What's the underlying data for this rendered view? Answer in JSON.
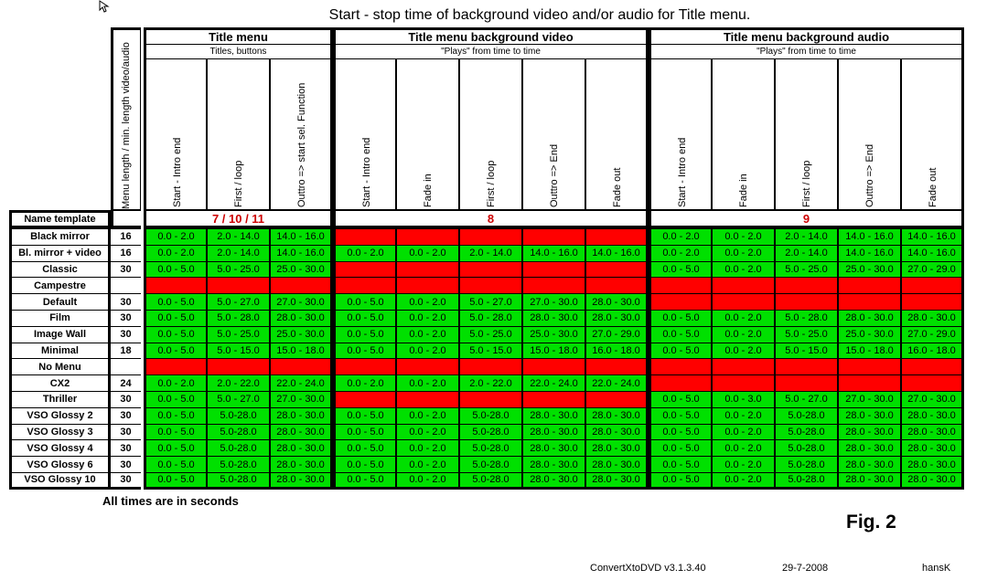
{
  "title": "Start - stop time of background video and/or audio for Title menu.",
  "menu_length_header": "Menu length / min. length video/audio",
  "groups": [
    {
      "title": "Title menu",
      "subtitle": "Titles, buttons",
      "columns": [
        "Start - Intro end",
        "First / loop",
        "Outtro => start sel. Function"
      ],
      "template": "7 / 10 / 11"
    },
    {
      "title": "Title menu background video",
      "subtitle": "\"Plays\" from time to time",
      "columns": [
        "Start - Intro end",
        "Fade in",
        "First / loop",
        "Outtro => End",
        "Fade out"
      ],
      "template": "8"
    },
    {
      "title": "Title menu background audio",
      "subtitle": "\"Plays\" from time to time",
      "columns": [
        "Start - Intro end",
        "Fade in",
        "First / loop",
        "Outtro => End",
        "Fade out"
      ],
      "template": "9"
    }
  ],
  "name_template_label": "Name template",
  "rows": [
    {
      "name": "Black mirror",
      "len": "16",
      "tm": [
        "0.0 - 2.0",
        "2.0 - 14.0",
        "14.0 - 16.0"
      ],
      "video": null,
      "audio": [
        "0.0 - 2.0",
        "0.0 - 2.0",
        "2.0 - 14.0",
        "14.0 - 16.0",
        "14.0 - 16.0"
      ]
    },
    {
      "name": "Bl. mirror + video",
      "len": "16",
      "tm": [
        "0.0 - 2.0",
        "2.0 - 14.0",
        "14.0 - 16.0"
      ],
      "video": [
        "0.0 - 2.0",
        "0.0 - 2.0",
        "2.0 - 14.0",
        "14.0 - 16.0",
        "14.0 - 16.0"
      ],
      "audio": [
        "0.0 - 2.0",
        "0.0 - 2.0",
        "2.0 - 14.0",
        "14.0 - 16.0",
        "14.0 - 16.0"
      ]
    },
    {
      "name": "Classic",
      "len": "30",
      "tm": [
        "0.0 - 5.0",
        "5.0 - 25.0",
        "25.0 - 30.0"
      ],
      "video": null,
      "audio": [
        "0.0 - 5.0",
        "0.0 - 2.0",
        "5.0 - 25.0",
        "25.0 - 30.0",
        "27.0 - 29.0"
      ]
    },
    {
      "name": "Campestre",
      "len": "",
      "tm": null,
      "video": null,
      "audio": null
    },
    {
      "name": "Default",
      "len": "30",
      "tm": [
        "0.0 - 5.0",
        "5.0 - 27.0",
        "27.0 - 30.0"
      ],
      "video": [
        "0.0 - 5.0",
        "0.0 - 2.0",
        "5.0 - 27.0",
        "27.0 - 30.0",
        "28.0 - 30.0"
      ],
      "audio": null
    },
    {
      "name": "Film",
      "len": "30",
      "tm": [
        "0.0 - 5.0",
        "5.0 - 28.0",
        "28.0 - 30.0"
      ],
      "video": [
        "0.0 - 5.0",
        "0.0 - 2.0",
        "5.0 - 28.0",
        "28.0 - 30.0",
        "28.0 - 30.0"
      ],
      "audio": [
        "0.0 - 5.0",
        "0.0 - 2.0",
        "5.0 - 28.0",
        "28.0 - 30.0",
        "28.0 - 30.0"
      ]
    },
    {
      "name": "Image Wall",
      "len": "30",
      "tm": [
        "0.0 - 5.0",
        "5.0 - 25.0",
        "25.0 - 30.0"
      ],
      "video": [
        "0.0 - 5.0",
        "0.0 - 2.0",
        "5.0 - 25.0",
        "25.0 - 30.0",
        "27.0 - 29.0"
      ],
      "audio": [
        "0.0 - 5.0",
        "0.0 - 2.0",
        "5.0 - 25.0",
        "25.0 - 30.0",
        "27.0 - 29.0"
      ]
    },
    {
      "name": "Minimal",
      "len": "18",
      "tm": [
        "0.0 - 5.0",
        "5.0 - 15.0",
        "15.0 - 18.0"
      ],
      "video": [
        "0.0 - 5.0",
        "0.0 - 2.0",
        "5.0 - 15.0",
        "15.0 - 18.0",
        "16.0 - 18.0"
      ],
      "audio": [
        "0.0 - 5.0",
        "0.0 - 2.0",
        "5.0 - 15.0",
        "15.0 - 18.0",
        "16.0 - 18.0"
      ]
    },
    {
      "name": "No Menu",
      "len": "",
      "tm": null,
      "video": null,
      "audio": null
    },
    {
      "name": "CX2",
      "len": "24",
      "tm": [
        "0.0 - 2.0",
        "2.0 - 22.0",
        "22.0 - 24.0"
      ],
      "video": [
        "0.0 - 2.0",
        "0.0 - 2.0",
        "2.0 - 22.0",
        "22.0 - 24.0",
        "22.0 - 24.0"
      ],
      "audio": null
    },
    {
      "name": "Thriller",
      "len": "30",
      "tm": [
        "0.0 - 5.0",
        "5.0 - 27.0",
        "27.0 - 30.0"
      ],
      "video": null,
      "audio": [
        "0.0 - 5.0",
        "0.0 - 3.0",
        "5.0 - 27.0",
        "27.0 - 30.0",
        "27.0 - 30.0"
      ]
    },
    {
      "name": "VSO Glossy 2",
      "len": "30",
      "tm": [
        "0.0 - 5.0",
        "5.0-28.0",
        "28.0 - 30.0"
      ],
      "video": [
        "0.0 - 5.0",
        "0.0 - 2.0",
        "5.0-28.0",
        "28.0 - 30.0",
        "28.0 - 30.0"
      ],
      "audio": [
        "0.0 - 5.0",
        "0.0 - 2.0",
        "5.0-28.0",
        "28.0 - 30.0",
        "28.0 - 30.0"
      ]
    },
    {
      "name": "VSO Glossy 3",
      "len": "30",
      "tm": [
        "0.0 - 5.0",
        "5.0-28.0",
        "28.0 - 30.0"
      ],
      "video": [
        "0.0 - 5.0",
        "0.0 - 2.0",
        "5.0-28.0",
        "28.0 - 30.0",
        "28.0 - 30.0"
      ],
      "audio": [
        "0.0 - 5.0",
        "0.0 - 2.0",
        "5.0-28.0",
        "28.0 - 30.0",
        "28.0 - 30.0"
      ]
    },
    {
      "name": "VSO Glossy 4",
      "len": "30",
      "tm": [
        "0.0 - 5.0",
        "5.0-28.0",
        "28.0 - 30.0"
      ],
      "video": [
        "0.0 - 5.0",
        "0.0 - 2.0",
        "5.0-28.0",
        "28.0 - 30.0",
        "28.0 - 30.0"
      ],
      "audio": [
        "0.0 - 5.0",
        "0.0 - 2.0",
        "5.0-28.0",
        "28.0 - 30.0",
        "28.0 - 30.0"
      ]
    },
    {
      "name": "VSO Glossy 6",
      "len": "30",
      "tm": [
        "0.0 - 5.0",
        "5.0-28.0",
        "28.0 - 30.0"
      ],
      "video": [
        "0.0 - 5.0",
        "0.0 - 2.0",
        "5.0-28.0",
        "28.0 - 30.0",
        "28.0 - 30.0"
      ],
      "audio": [
        "0.0 - 5.0",
        "0.0 - 2.0",
        "5.0-28.0",
        "28.0 - 30.0",
        "28.0 - 30.0"
      ]
    },
    {
      "name": "VSO Glossy 10",
      "len": "30",
      "tm": [
        "0.0 - 5.0",
        "5.0-28.0",
        "28.0 - 30.0"
      ],
      "video": [
        "0.0 - 5.0",
        "0.0 - 2.0",
        "5.0-28.0",
        "28.0 - 30.0",
        "28.0 - 30.0"
      ],
      "audio": [
        "0.0 - 5.0",
        "0.0 - 2.0",
        "5.0-28.0",
        "28.0 - 30.0",
        "28.0 - 30.0"
      ]
    }
  ],
  "footnote": "All times are in seconds",
  "figure_label": "Fig. 2",
  "footer": {
    "app": "ConvertXtoDVD v3.1.3.40",
    "date": "29-7-2008",
    "author": "hansK"
  },
  "colors": {
    "on": "#00e000",
    "off": "#ff0000",
    "template_text": "#cc0000"
  }
}
